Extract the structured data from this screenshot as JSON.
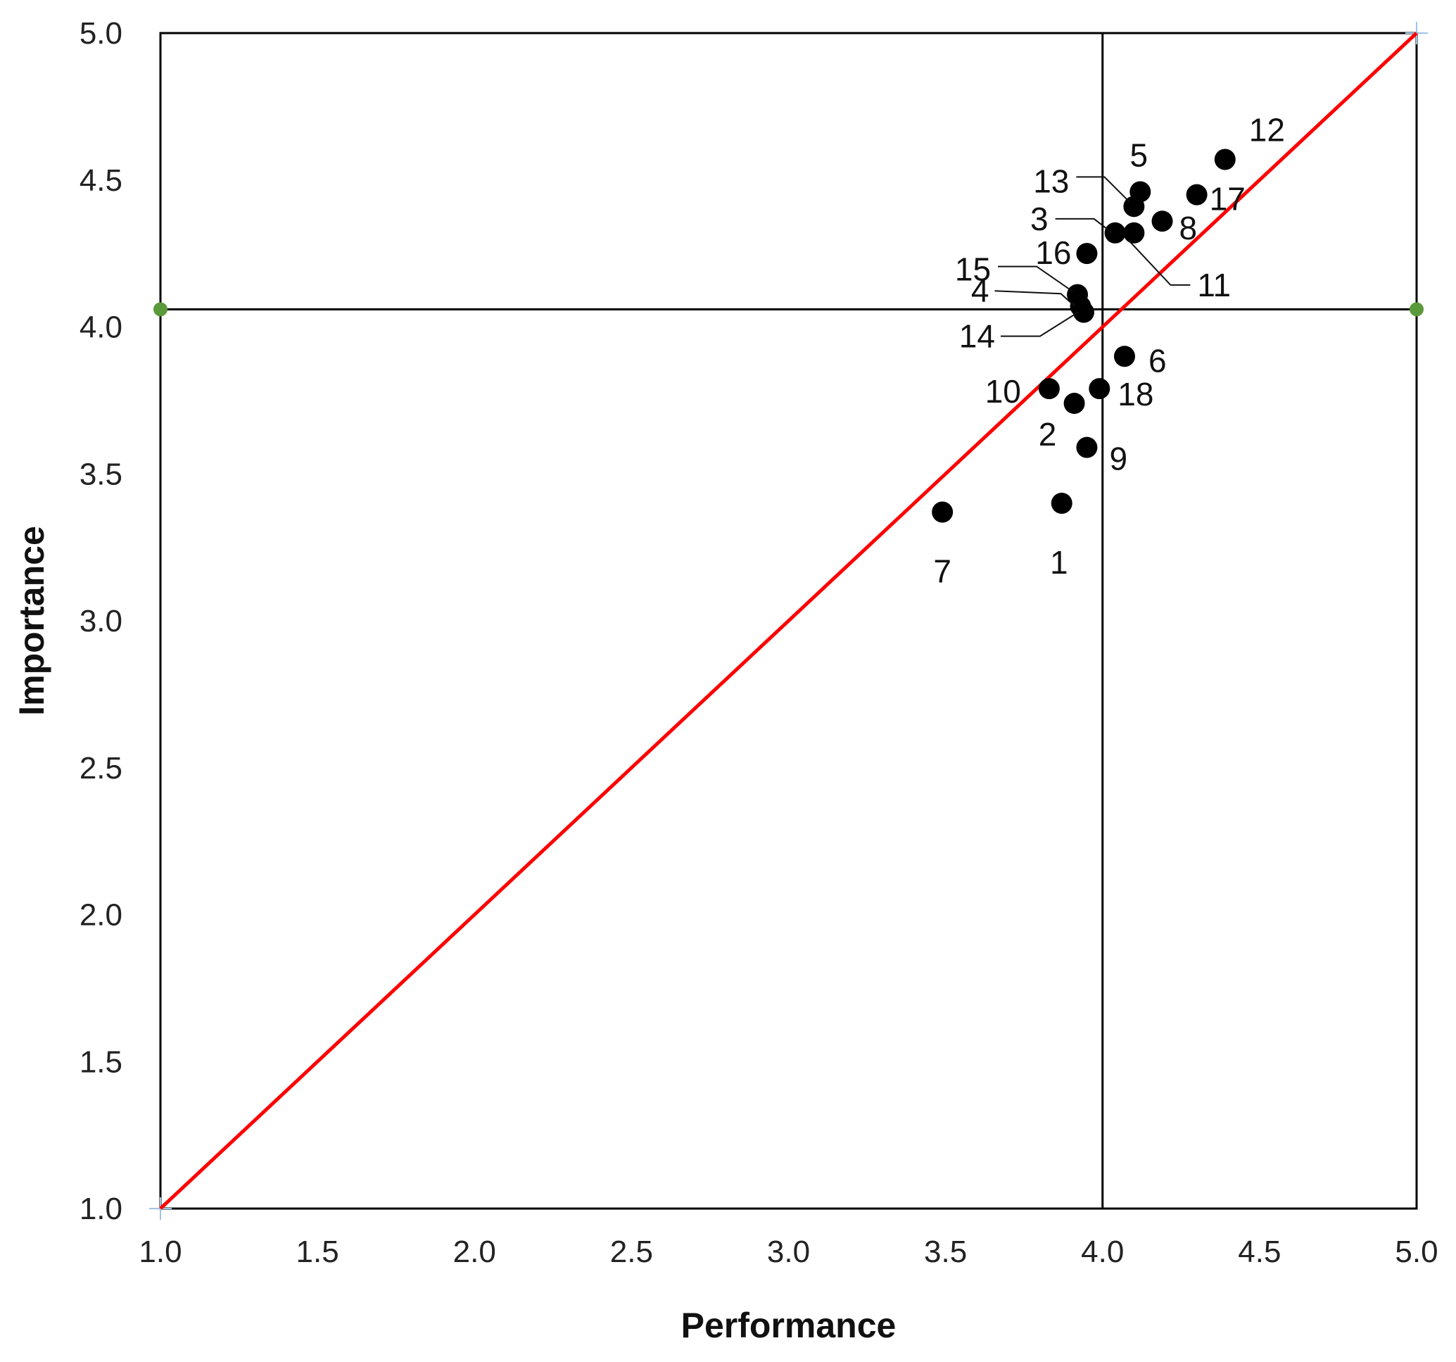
{
  "chart_data": {
    "type": "scatter",
    "title": "",
    "xlabel": "Performance",
    "ylabel": "Importance",
    "xlim": [
      1.0,
      5.0
    ],
    "ylim": [
      1.0,
      5.0
    ],
    "x_ticks": [
      "1.0",
      "1.5",
      "2.0",
      "2.5",
      "3.0",
      "3.5",
      "4.0",
      "4.5",
      "5.0"
    ],
    "y_ticks": [
      "1.0",
      "1.5",
      "2.0",
      "2.5",
      "3.0",
      "3.5",
      "4.0",
      "4.5",
      "5.0"
    ],
    "grid": false,
    "mean_lines": {
      "x": 4.0,
      "y": 4.06
    },
    "diagonal": {
      "from": [
        1.0,
        1.0
      ],
      "to": [
        5.0,
        5.0
      ],
      "color": "#ff0000"
    },
    "colors": {
      "points": "#000000",
      "quadrant_lines": "#000000",
      "diagonal": "#ff0000",
      "mean_markers": "#5a9a3a"
    },
    "points": [
      {
        "label": "1",
        "x": 3.87,
        "y": 3.4
      },
      {
        "label": "2",
        "x": 3.91,
        "y": 3.74
      },
      {
        "label": "3",
        "x": 4.04,
        "y": 4.32
      },
      {
        "label": "4",
        "x": 3.93,
        "y": 4.07
      },
      {
        "label": "5",
        "x": 4.12,
        "y": 4.46
      },
      {
        "label": "6",
        "x": 4.07,
        "y": 3.9
      },
      {
        "label": "7",
        "x": 3.49,
        "y": 3.37
      },
      {
        "label": "8",
        "x": 4.19,
        "y": 4.36
      },
      {
        "label": "9",
        "x": 3.95,
        "y": 3.59
      },
      {
        "label": "10",
        "x": 3.83,
        "y": 3.79
      },
      {
        "label": "11",
        "x": 4.1,
        "y": 4.32
      },
      {
        "label": "12",
        "x": 4.39,
        "y": 4.57
      },
      {
        "label": "13",
        "x": 4.1,
        "y": 4.41
      },
      {
        "label": "14",
        "x": 3.94,
        "y": 4.05
      },
      {
        "label": "15",
        "x": 3.92,
        "y": 4.11
      },
      {
        "label": "16",
        "x": 3.95,
        "y": 4.25
      },
      {
        "label": "17",
        "x": 4.3,
        "y": 4.45
      },
      {
        "label": "18",
        "x": 3.99,
        "y": 3.79
      }
    ]
  }
}
